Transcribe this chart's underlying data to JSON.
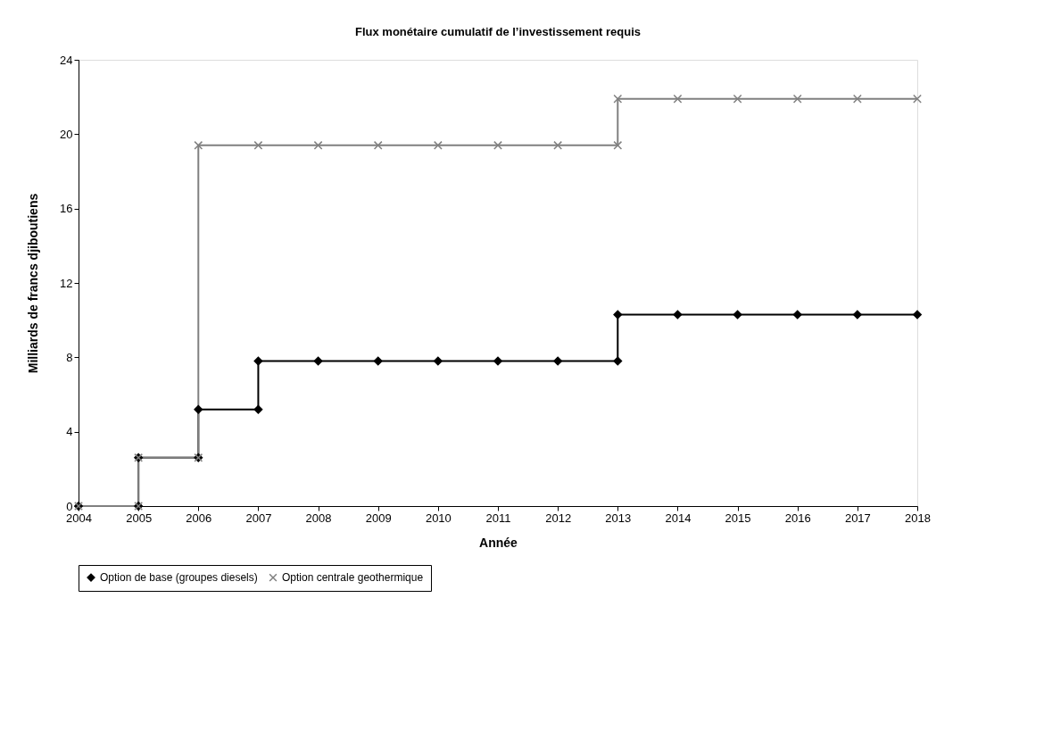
{
  "chart_data": {
    "type": "line",
    "title": "Flux monétaire cumulatif de l’investissement requis",
    "xlabel": "Année",
    "ylabel": "Milliards de francs djiboutiens",
    "xlim": [
      2004,
      2018
    ],
    "xticks": [
      2004,
      2005,
      2006,
      2007,
      2008,
      2009,
      2010,
      2011,
      2012,
      2013,
      2014,
      2015,
      2016,
      2017,
      2018
    ],
    "ylim": [
      0,
      24
    ],
    "yticks": [
      0,
      4,
      8,
      12,
      16,
      20,
      24
    ],
    "grid": false,
    "legend": "bottom",
    "series": [
      {
        "name": "Option de base (groupes diesels)",
        "color": "#000000",
        "marker": "diamond",
        "x": [
          2004,
          2005,
          2005,
          2006,
          2006,
          2007,
          2007,
          2008,
          2009,
          2010,
          2011,
          2012,
          2013,
          2013,
          2014,
          2015,
          2016,
          2017,
          2018
        ],
        "values": [
          0,
          0,
          2.6,
          2.6,
          5.2,
          5.2,
          7.8,
          7.8,
          7.8,
          7.8,
          7.8,
          7.8,
          7.8,
          10.3,
          10.3,
          10.3,
          10.3,
          10.3,
          10.3
        ]
      },
      {
        "name": "Option centrale geothermique",
        "color": "#808080",
        "marker": "cross",
        "x": [
          2004,
          2005,
          2005,
          2006,
          2006,
          2007,
          2008,
          2009,
          2010,
          2011,
          2012,
          2013,
          2013,
          2014,
          2015,
          2016,
          2017,
          2018
        ],
        "values": [
          0,
          0,
          2.6,
          2.6,
          19.4,
          19.4,
          19.4,
          19.4,
          19.4,
          19.4,
          19.4,
          19.4,
          21.9,
          21.9,
          21.9,
          21.9,
          21.9,
          21.9
        ]
      }
    ]
  }
}
